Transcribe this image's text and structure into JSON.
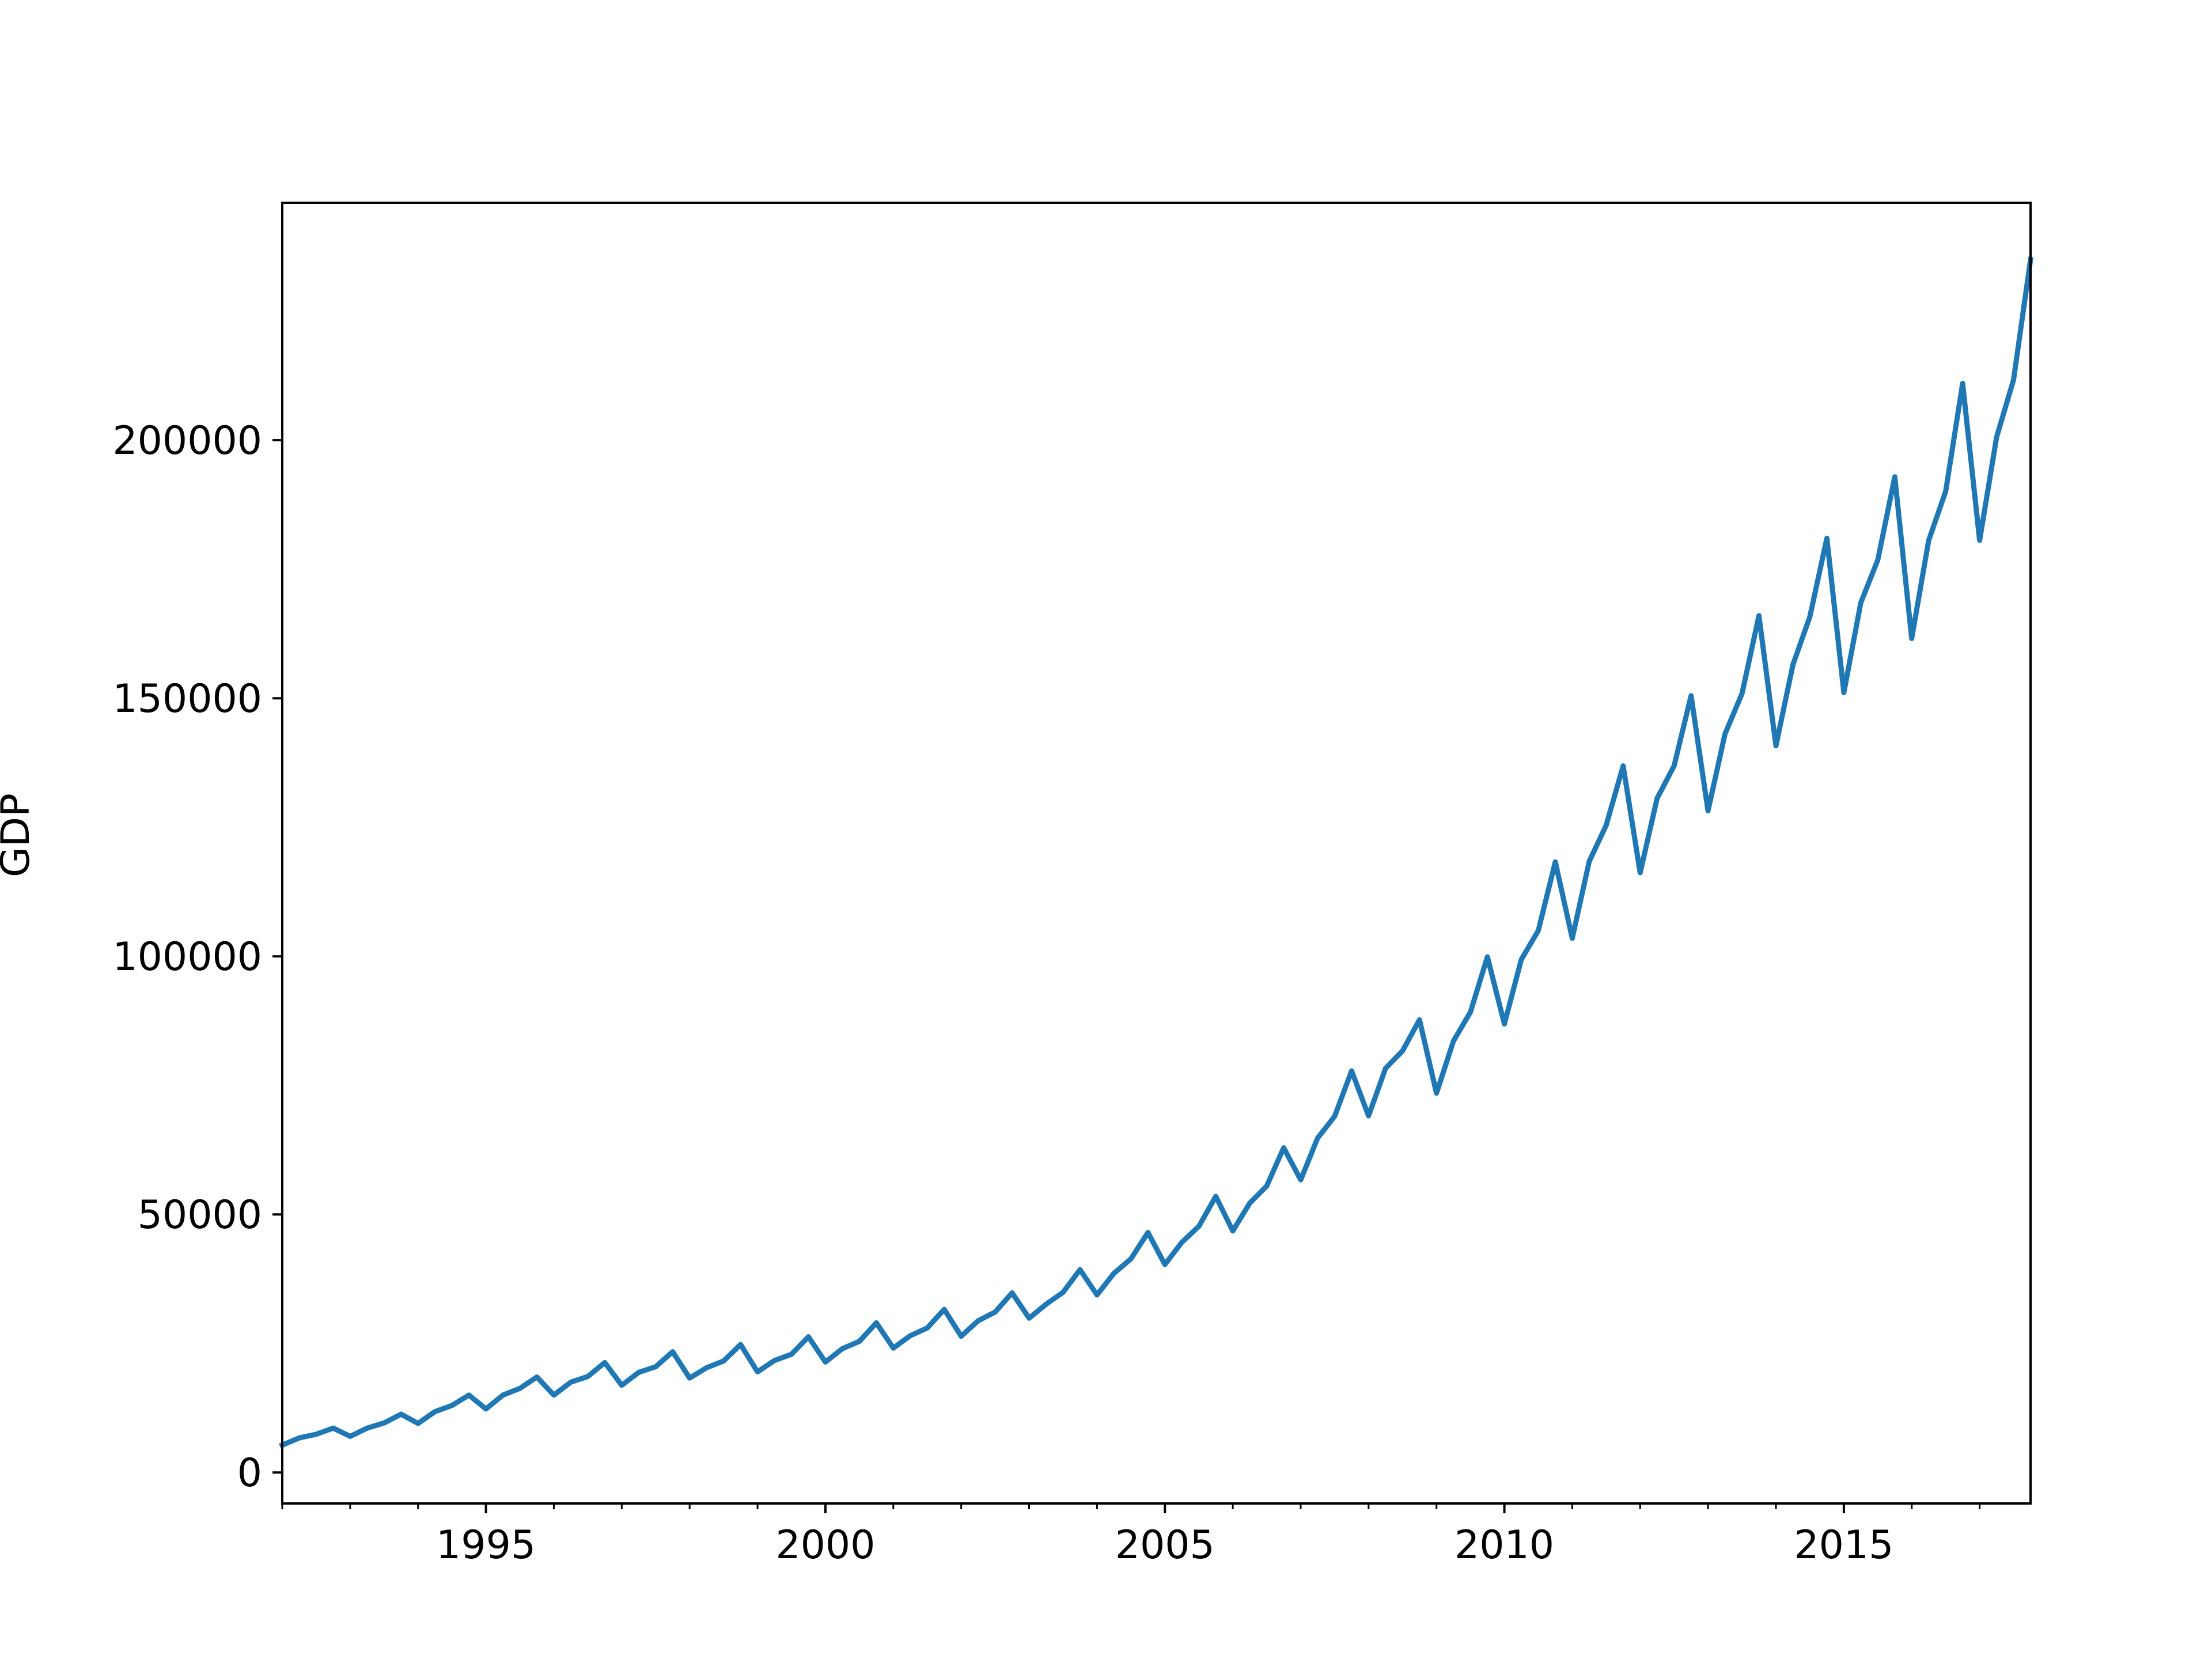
{
  "chart_data": {
    "type": "line",
    "title": "",
    "xlabel": "",
    "ylabel": "GDP",
    "xlim": [
      1992.0,
      2017.75
    ],
    "ylim": [
      -6000,
      246000
    ],
    "grid": false,
    "legend": "none",
    "line_color": "#1f77b4",
    "x_major_ticks": [
      1995,
      2000,
      2005,
      2010,
      2015
    ],
    "x_major_tick_labels": [
      "1995",
      "2000",
      "2005",
      "2010",
      "2015"
    ],
    "x_minor_ticks": [
      1992,
      1993,
      1994,
      1996,
      1997,
      1998,
      1999,
      2001,
      2002,
      2003,
      2004,
      2006,
      2007,
      2008,
      2009,
      2011,
      2012,
      2013,
      2014,
      2016,
      2017
    ],
    "y_ticks": [
      0,
      50000,
      100000,
      150000,
      200000
    ],
    "y_tick_labels": [
      "0",
      "50000",
      "100000",
      "150000",
      "200000"
    ],
    "series": [
      {
        "values": [
          5300,
          6700,
          7400,
          8600,
          7000,
          8600,
          9600,
          11300,
          9500,
          11800,
          13000,
          15000,
          12300,
          15000,
          16300,
          18500,
          15000,
          17500,
          18600,
          21300,
          16900,
          19400,
          20500,
          23400,
          18300,
          20300,
          21600,
          24800,
          19500,
          21700,
          22900,
          26300,
          21400,
          24000,
          25400,
          29000,
          24100,
          26500,
          28000,
          31600,
          26400,
          29400,
          31100,
          34800,
          29900,
          32600,
          34900,
          39300,
          34400,
          38600,
          41400,
          46500,
          40300,
          44600,
          47700,
          53500,
          46800,
          52200,
          55500,
          62900,
          56700,
          64800,
          69000,
          77800,
          69100,
          78300,
          81700,
          87700,
          73500,
          83600,
          89200,
          99900,
          86900,
          99400,
          105000,
          118300,
          103500,
          118400,
          125400,
          136900,
          116200,
          130600,
          136900,
          150500,
          128200,
          143100,
          150900,
          166000,
          140800,
          156500,
          165800,
          181000,
          151100,
          168500,
          176800,
          192900,
          161600,
          180600,
          190100,
          211000,
          180600,
          200600,
          211700,
          235000
        ]
      }
    ]
  }
}
